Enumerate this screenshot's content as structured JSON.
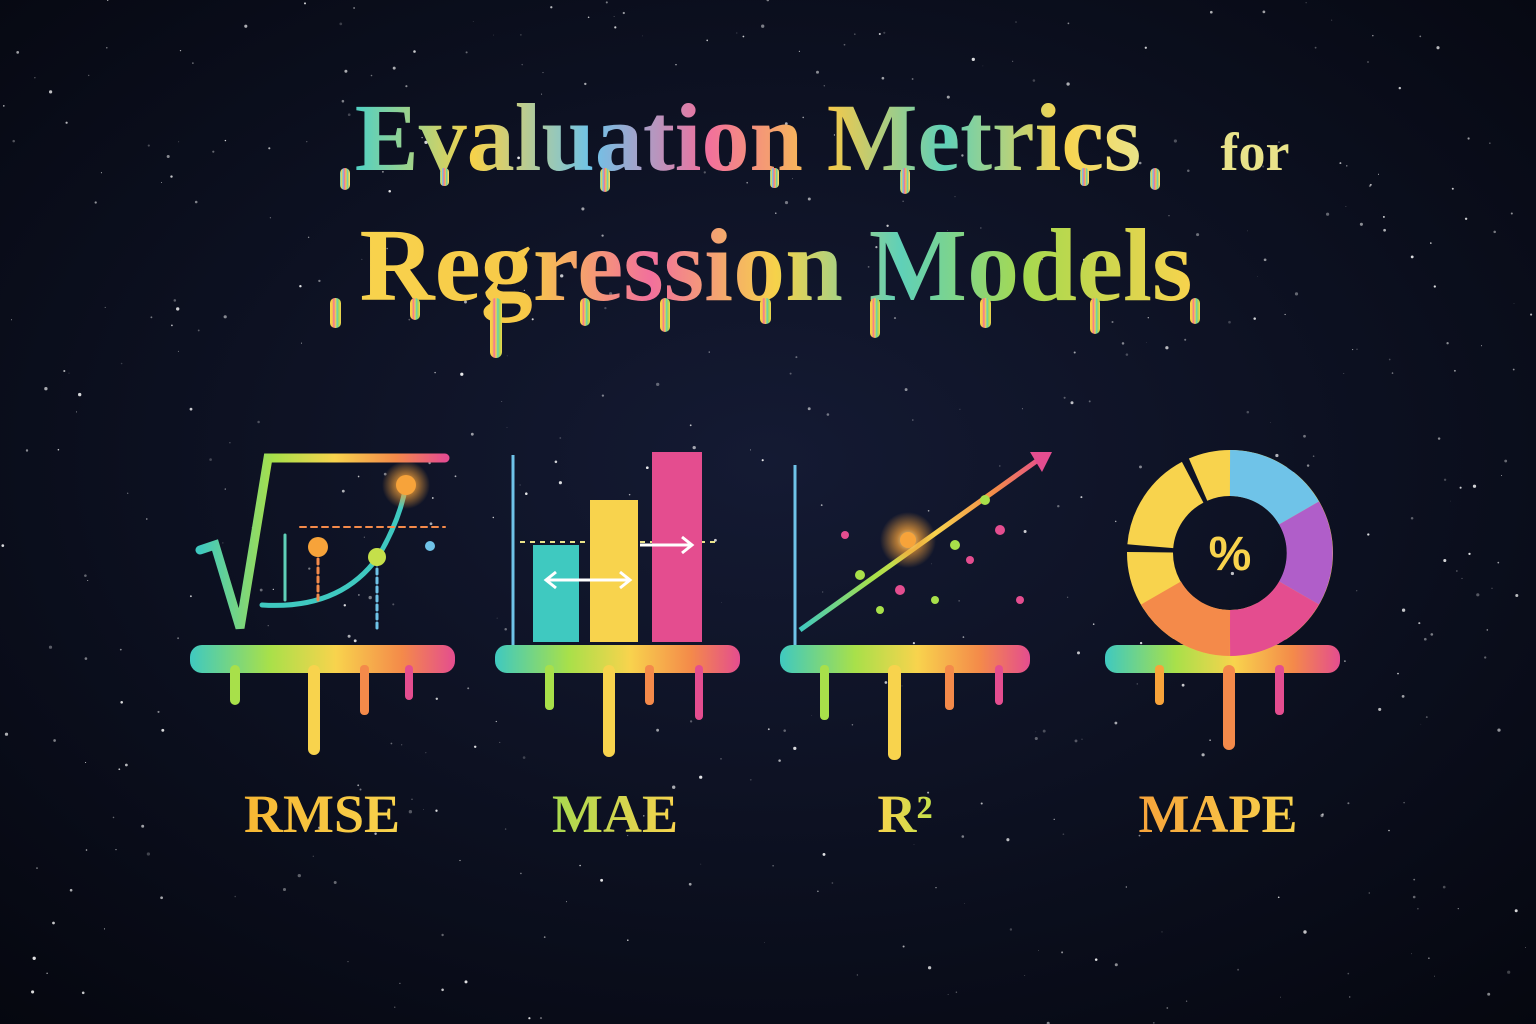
{
  "title": {
    "main": "Evaluation Metrics",
    "connector": "for",
    "subtitle": "Regression Models"
  },
  "metrics": [
    {
      "label": "RMSE"
    },
    {
      "label": "MAE"
    },
    {
      "label": "R²"
    },
    {
      "label": "MAPE",
      "icon_text": "%"
    }
  ]
}
